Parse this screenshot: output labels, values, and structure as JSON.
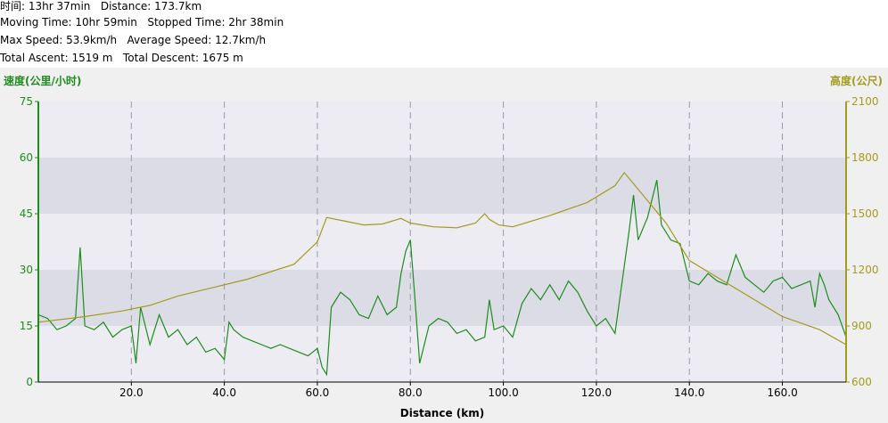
{
  "stats": {
    "line1": "时间: 13hr 37min   Distance: 173.7km",
    "line2": "Moving Time: 10hr 59min   Stopped Time: 2hr 38min",
    "line3": "Max Speed: 53.9km/h   Average Speed: 12.7km/h",
    "line4": "Total Ascent: 1519 m   Total Descent: 1675 m"
  },
  "colors": {
    "speed": "#1e8c1e",
    "elevation": "#a39b1b",
    "band_light": "#ececf2",
    "band_dark": "#dcdce6",
    "grid": "#9a9aa5"
  },
  "chart_data": {
    "type": "line",
    "xlabel": "Distance (km)",
    "ylabel_left": "速度(公里/小时)",
    "ylabel_right": "高度(公尺)",
    "xlim": [
      0,
      173.7
    ],
    "ylim_left": [
      0,
      75
    ],
    "ylim_right": [
      600,
      2100
    ],
    "x_ticks": [
      "20.0",
      "40.0",
      "60.0",
      "80.0",
      "100.0",
      "120.0",
      "140.0",
      "160.0"
    ],
    "x_tick_values": [
      20,
      40,
      60,
      80,
      100,
      120,
      140,
      160
    ],
    "left_ticks": [
      "0",
      "15",
      "30",
      "45",
      "60",
      "75"
    ],
    "left_tick_values": [
      0,
      15,
      30,
      45,
      60,
      75
    ],
    "right_ticks": [
      "600",
      "900",
      "1200",
      "1500",
      "1800",
      "2100"
    ],
    "right_tick_values": [
      600,
      900,
      1200,
      1500,
      1800,
      2100
    ],
    "grid_x_values": [
      20,
      40,
      60,
      80,
      100,
      120,
      140,
      160
    ],
    "series": [
      {
        "name": "速度(公里/小时)",
        "axis": "left",
        "points": [
          [
            0,
            18
          ],
          [
            2,
            17
          ],
          [
            4,
            14
          ],
          [
            6,
            15
          ],
          [
            8,
            17
          ],
          [
            9,
            36
          ],
          [
            10,
            15
          ],
          [
            12,
            14
          ],
          [
            14,
            16
          ],
          [
            16,
            12
          ],
          [
            18,
            14
          ],
          [
            20,
            15
          ],
          [
            21,
            5
          ],
          [
            22,
            20
          ],
          [
            24,
            10
          ],
          [
            26,
            18
          ],
          [
            28,
            12
          ],
          [
            30,
            14
          ],
          [
            32,
            10
          ],
          [
            34,
            12
          ],
          [
            36,
            8
          ],
          [
            38,
            9
          ],
          [
            40,
            6
          ],
          [
            41,
            16
          ],
          [
            42,
            14
          ],
          [
            44,
            12
          ],
          [
            46,
            11
          ],
          [
            48,
            10
          ],
          [
            50,
            9
          ],
          [
            52,
            10
          ],
          [
            54,
            9
          ],
          [
            56,
            8
          ],
          [
            58,
            7
          ],
          [
            60,
            9
          ],
          [
            61,
            4
          ],
          [
            62,
            2
          ],
          [
            63,
            20
          ],
          [
            65,
            24
          ],
          [
            67,
            22
          ],
          [
            69,
            18
          ],
          [
            71,
            17
          ],
          [
            73,
            23
          ],
          [
            75,
            18
          ],
          [
            77,
            20
          ],
          [
            78,
            29
          ],
          [
            79,
            35
          ],
          [
            80,
            38
          ],
          [
            81,
            22
          ],
          [
            82,
            5
          ],
          [
            84,
            15
          ],
          [
            86,
            17
          ],
          [
            88,
            16
          ],
          [
            90,
            13
          ],
          [
            92,
            14
          ],
          [
            94,
            11
          ],
          [
            96,
            12
          ],
          [
            97,
            22
          ],
          [
            98,
            14
          ],
          [
            100,
            15
          ],
          [
            102,
            12
          ],
          [
            104,
            21
          ],
          [
            106,
            25
          ],
          [
            108,
            22
          ],
          [
            110,
            26
          ],
          [
            112,
            22
          ],
          [
            114,
            27
          ],
          [
            116,
            24
          ],
          [
            118,
            19
          ],
          [
            120,
            15
          ],
          [
            122,
            17
          ],
          [
            124,
            13
          ],
          [
            126,
            31
          ],
          [
            127,
            40
          ],
          [
            128,
            50
          ],
          [
            129,
            38
          ],
          [
            131,
            44
          ],
          [
            133,
            54
          ],
          [
            134,
            42
          ],
          [
            136,
            38
          ],
          [
            138,
            37
          ],
          [
            140,
            27
          ],
          [
            142,
            26
          ],
          [
            144,
            29
          ],
          [
            146,
            27
          ],
          [
            148,
            26
          ],
          [
            150,
            34
          ],
          [
            152,
            28
          ],
          [
            154,
            26
          ],
          [
            156,
            24
          ],
          [
            158,
            27
          ],
          [
            160,
            28
          ],
          [
            162,
            25
          ],
          [
            164,
            26
          ],
          [
            166,
            27
          ],
          [
            167,
            20
          ],
          [
            168,
            29
          ],
          [
            169,
            26
          ],
          [
            170,
            22
          ],
          [
            172,
            18
          ],
          [
            173.7,
            12
          ]
        ]
      },
      {
        "name": "高度(公尺)",
        "axis": "right",
        "points": [
          [
            0,
            920
          ],
          [
            10,
            950
          ],
          [
            18,
            980
          ],
          [
            24,
            1010
          ],
          [
            30,
            1060
          ],
          [
            40,
            1120
          ],
          [
            45,
            1150
          ],
          [
            55,
            1230
          ],
          [
            60,
            1350
          ],
          [
            62,
            1480
          ],
          [
            66,
            1460
          ],
          [
            70,
            1440
          ],
          [
            74,
            1445
          ],
          [
            78,
            1475
          ],
          [
            80,
            1450
          ],
          [
            85,
            1430
          ],
          [
            90,
            1425
          ],
          [
            94,
            1450
          ],
          [
            96,
            1500
          ],
          [
            97,
            1470
          ],
          [
            99,
            1440
          ],
          [
            102,
            1430
          ],
          [
            110,
            1490
          ],
          [
            118,
            1560
          ],
          [
            124,
            1650
          ],
          [
            126,
            1720
          ],
          [
            130,
            1600
          ],
          [
            135,
            1450
          ],
          [
            140,
            1250
          ],
          [
            150,
            1100
          ],
          [
            160,
            950
          ],
          [
            168,
            880
          ],
          [
            173.7,
            800
          ]
        ]
      }
    ]
  }
}
